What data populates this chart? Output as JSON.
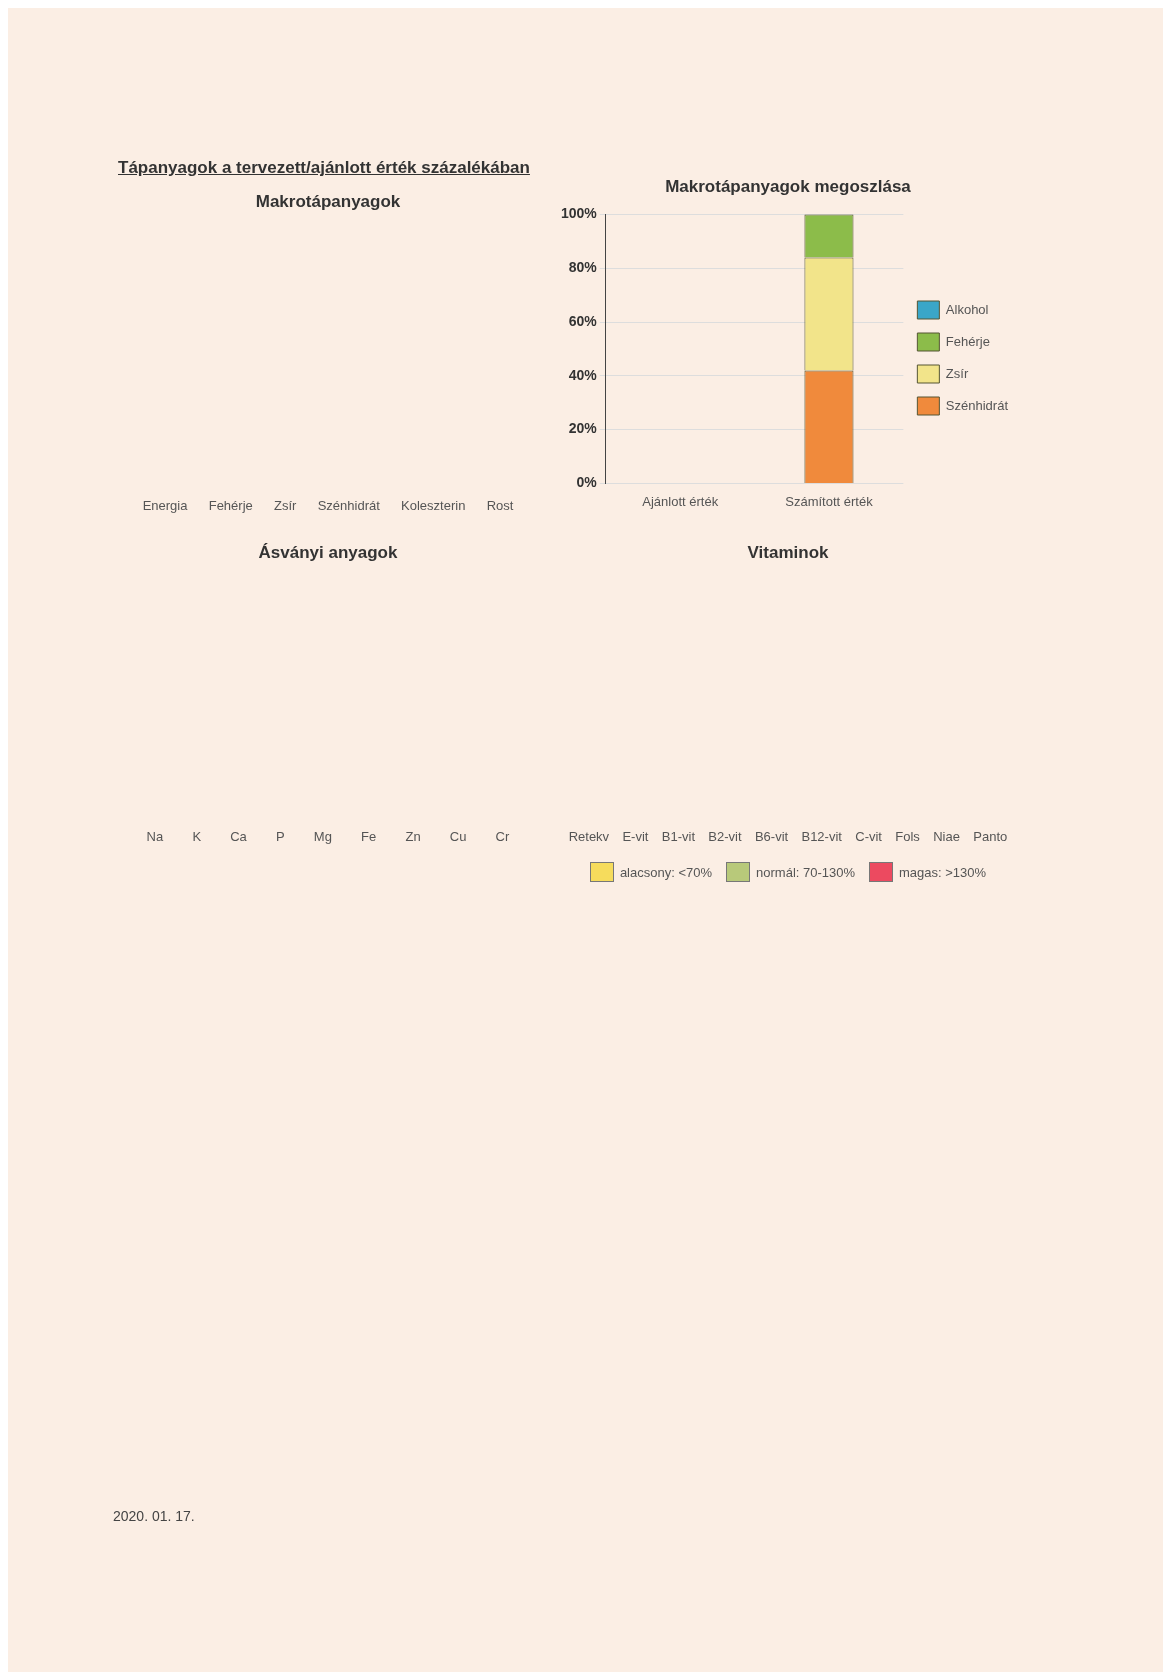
{
  "chart_data": [
    {
      "type": "other",
      "title": "Tápanyagok a tervezett/ajánlott érték százalékában",
      "subtitle": "Makrotápanyagok",
      "categories": [
        "Energia",
        "Fehérje",
        "Zsír",
        "Szénhidrát",
        "Koleszterin",
        "Rost"
      ]
    },
    {
      "type": "bar",
      "title": "Makrotápanyagok megoszlása",
      "categories": [
        "Ajánlott érték",
        "Számított érték"
      ],
      "stacked": true,
      "legend": "right",
      "grid": "y",
      "ylim": [
        0,
        100
      ],
      "yticks": [
        {
          "value": 0,
          "label": "0%"
        },
        {
          "value": 20,
          "label": "20%"
        },
        {
          "value": 40,
          "label": "40%"
        },
        {
          "value": 60,
          "label": "60%"
        },
        {
          "value": 80,
          "label": "80%"
        },
        {
          "value": 100,
          "label": "100%"
        }
      ],
      "series": [
        {
          "name": "Szénhidrát",
          "color": "#f08a3c",
          "values": [
            null,
            42
          ]
        },
        {
          "name": "Zsír",
          "color": "#f2e48a",
          "values": [
            null,
            42
          ]
        },
        {
          "name": "Fehérje",
          "color": "#8cbc4a",
          "values": [
            null,
            16
          ]
        },
        {
          "name": "Alkohol",
          "color": "#3aa6c8",
          "values": [
            null,
            0
          ]
        }
      ]
    },
    {
      "type": "other",
      "title": "Ásványi anyagok",
      "categories": [
        "Na",
        "K",
        "Ca",
        "P",
        "Mg",
        "Fe",
        "Zn",
        "Cu",
        "Cr"
      ]
    },
    {
      "type": "other",
      "title": "Vitaminok",
      "categories": [
        "Retekv",
        "E-vit",
        "B1-vit",
        "B2-vit",
        "B6-vit",
        "B12-vit",
        "C-vit",
        "Fols",
        "Niae",
        "Panto"
      ],
      "legend": "bottom",
      "annotations": [
        "2020. 01. 17."
      ],
      "series": [
        {
          "name": "alacsony: <70%",
          "color": "#f6dc5c",
          "values": [
            null,
            null,
            null,
            null,
            null,
            null,
            null,
            null,
            null,
            null
          ]
        },
        {
          "name": "normál: 70-130%",
          "color": "#b8c97a",
          "values": [
            null,
            null,
            null,
            null,
            null,
            null,
            null,
            null,
            null,
            null
          ]
        },
        {
          "name": "magas: >130%",
          "color": "#ec4a60",
          "values": [
            null,
            null,
            null,
            null,
            null,
            null,
            null,
            null,
            null,
            null
          ]
        }
      ]
    }
  ]
}
